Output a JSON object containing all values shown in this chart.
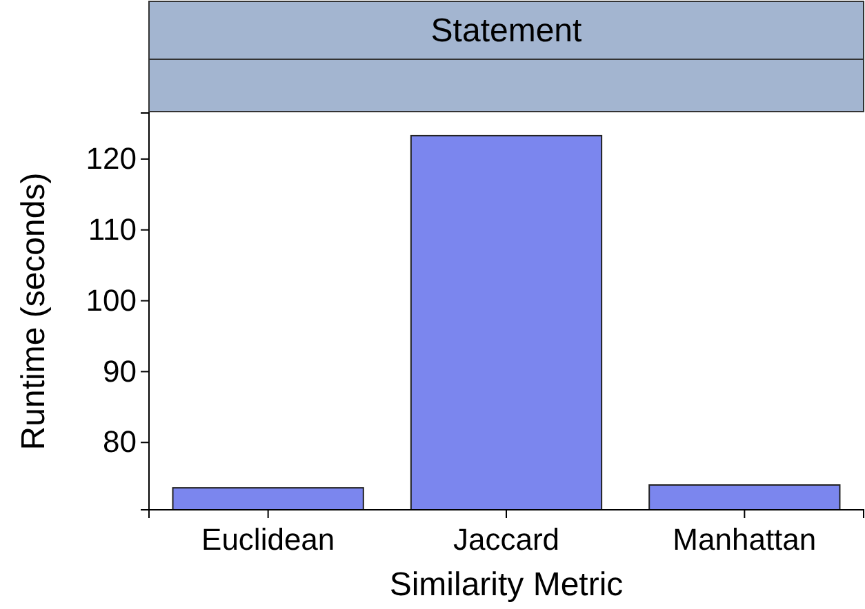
{
  "chart_data": {
    "type": "bar",
    "title": "Statement",
    "xlabel": "Similarity Metric",
    "ylabel": "Runtime (seconds)",
    "categories": [
      "Euclidean",
      "Jaccard",
      "Manhattan"
    ],
    "values": [
      73.6,
      123.3,
      74.0
    ],
    "color": "#7b86ee",
    "ylim": [
      70.5,
      126.5
    ],
    "yticks": [
      80,
      90,
      100,
      110,
      120
    ],
    "grid": false
  }
}
